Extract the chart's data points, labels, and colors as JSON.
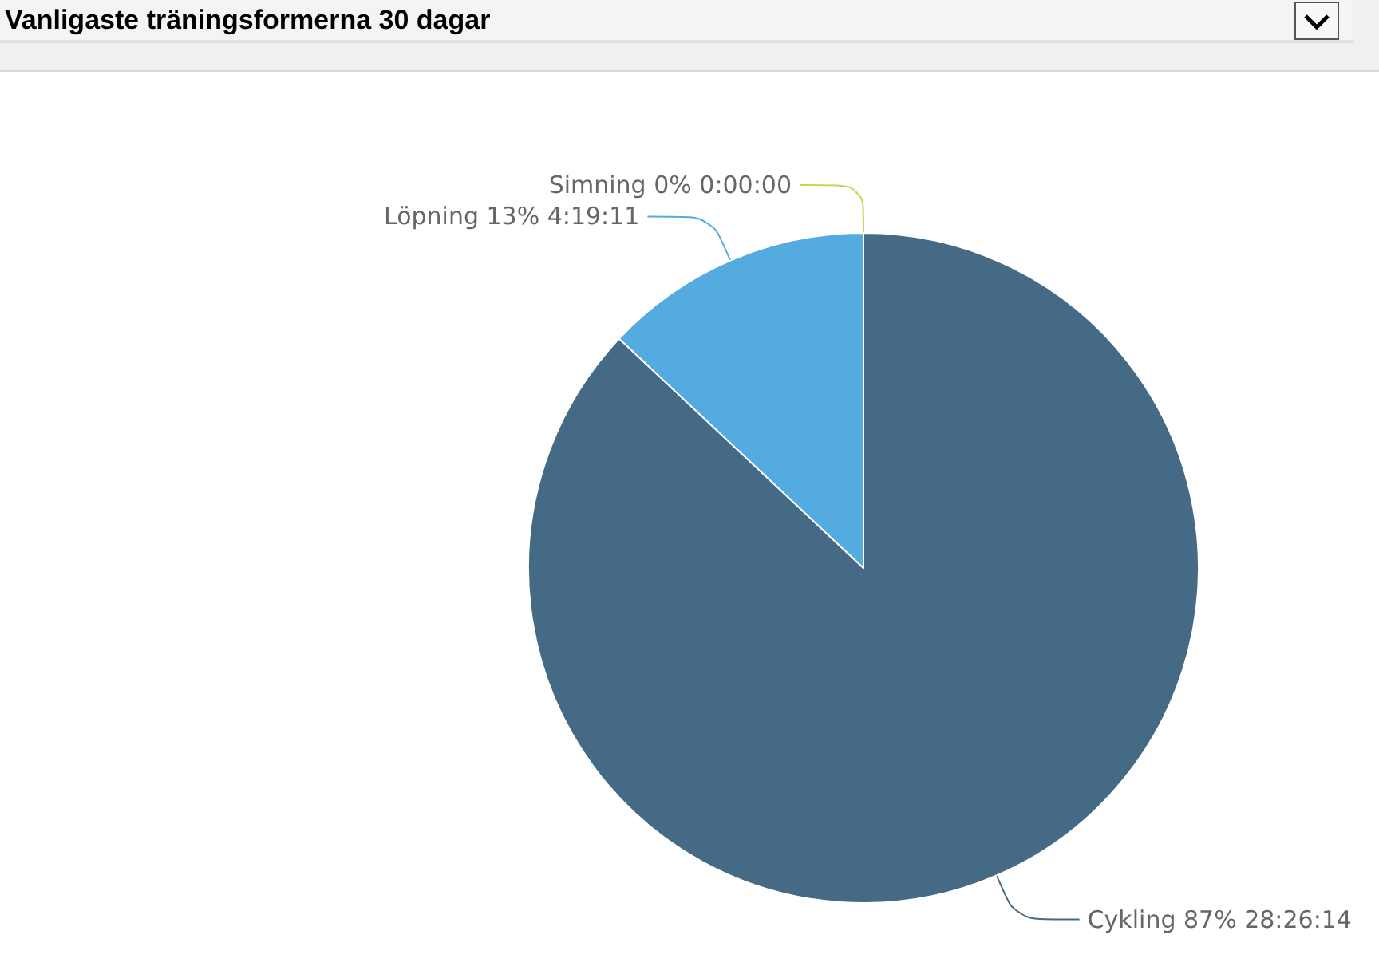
{
  "chart_data": {
    "type": "pie",
    "title": "Vanligaste träningsformerna 30 dagar",
    "categories": [
      "Cykling",
      "Löpning",
      "Simning"
    ],
    "values": [
      87,
      13,
      0
    ],
    "value_labels": [
      "87% 28:26:14",
      "13% 4:19:11",
      "0% 0:00:00"
    ],
    "colors": [
      "#446a86",
      "#53abe0",
      "#c9d451"
    ],
    "legend": false
  }
}
